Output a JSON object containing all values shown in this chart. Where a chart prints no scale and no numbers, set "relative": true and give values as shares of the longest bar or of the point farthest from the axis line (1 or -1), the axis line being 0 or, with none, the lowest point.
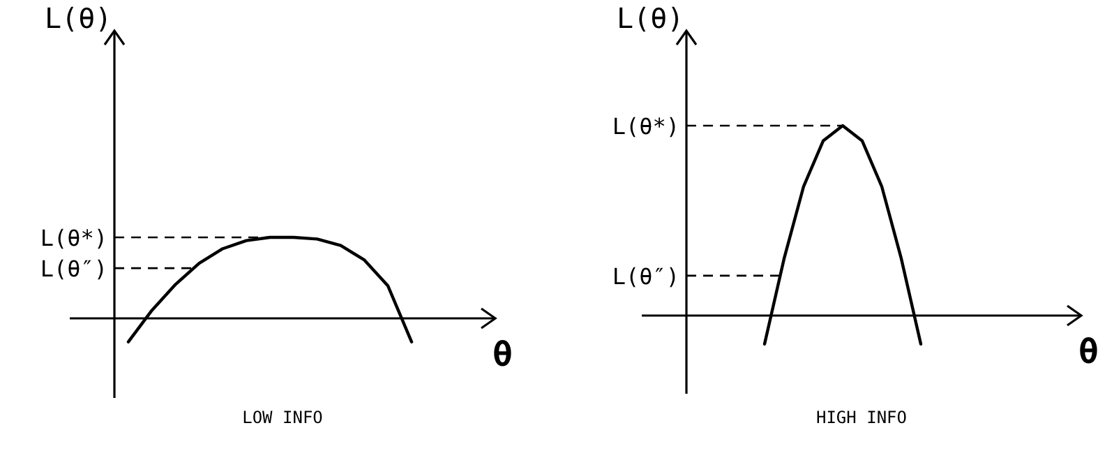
{
  "chart_data": [
    {
      "type": "line",
      "title": "LOW INFO",
      "xlabel": "θ",
      "ylabel": "L(θ)",
      "relative": true,
      "categories": [
        null,
        null,
        null,
        null,
        null,
        null,
        null,
        null,
        null,
        null,
        null,
        null,
        null
      ],
      "series": [
        {
          "color": "#000000",
          "values": [
            -0.29,
            0.1,
            0.42,
            0.68,
            0.86,
            0.96,
            1,
            1,
            0.98,
            0.9,
            0.72,
            0.4,
            -0.29
          ]
        }
      ],
      "ref_lines": [
        {
          "axis": "y",
          "value": 1,
          "label": "L(θ*)",
          "line_style": "dashed"
        },
        {
          "axis": "y",
          "value": 0.62,
          "label": "L(θ″)",
          "line_style": "dashed"
        }
      ]
    },
    {
      "type": "line",
      "title": "HIGH INFO",
      "xlabel": "θ",
      "ylabel": "L(θ)",
      "relative": true,
      "categories": [
        null,
        null,
        null,
        null,
        null,
        null,
        null,
        null,
        null
      ],
      "series": [
        {
          "color": "#000000",
          "values": [
            -0.15,
            0.3,
            0.68,
            0.92,
            1,
            0.92,
            0.68,
            0.3,
            -0.15
          ]
        }
      ],
      "ref_lines": [
        {
          "axis": "y",
          "value": 1,
          "label": "L(θ*)",
          "line_style": "dashed"
        },
        {
          "axis": "y",
          "value": 0.21,
          "label": "L(θ″)",
          "line_style": "dashed"
        }
      ]
    }
  ]
}
